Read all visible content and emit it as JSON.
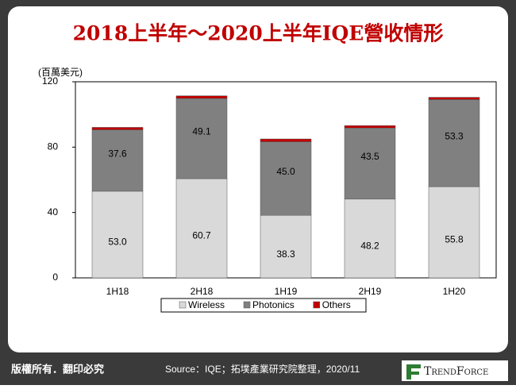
{
  "chart_data": {
    "type": "stacked_bar",
    "title": "2018上半年～2020上半年IQE營收情形",
    "y_label": "(百萬美元)",
    "categories": [
      "1H18",
      "2H18",
      "1H19",
      "2H19",
      "1H20"
    ],
    "series": [
      {
        "name": "Wireless",
        "color": "#d9d9d9",
        "values": [
          53.0,
          60.7,
          38.3,
          48.2,
          55.8
        ],
        "value_labels": [
          "53.0",
          "60.7",
          "38.3",
          "48.2",
          "55.8"
        ]
      },
      {
        "name": "Photonics",
        "color": "#808080",
        "values": [
          37.6,
          49.1,
          45.0,
          43.5,
          53.3
        ],
        "value_labels": [
          "37.6",
          "49.1",
          "45.0",
          "43.5",
          "53.3"
        ]
      },
      {
        "name": "Others",
        "color": "#c00000",
        "values": [
          1.5,
          1.6,
          1.7,
          1.5,
          1.4
        ]
      }
    ],
    "ylim": [
      0,
      120
    ],
    "yticks": [
      0,
      40,
      80,
      120
    ],
    "legend": "bottom"
  },
  "footer": {
    "copyright": "版權所有．翻印必究",
    "source": "Source：IQE；拓墣產業研究院整理，2020/11",
    "logo": "TrendForce"
  }
}
